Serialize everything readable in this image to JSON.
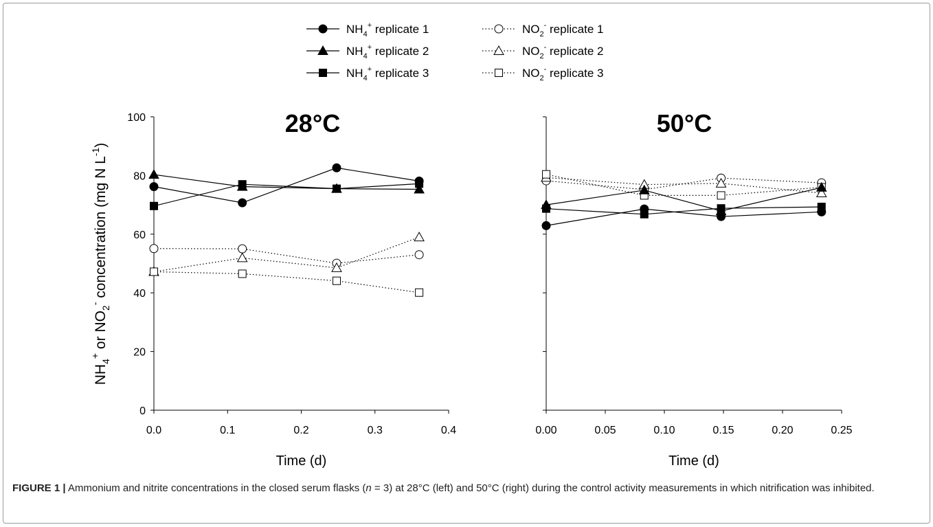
{
  "legend": {
    "entries": [
      {
        "id": "nh4-1",
        "main": "NH",
        "sub": "4",
        "sup": "+",
        "rest": " replicate 1",
        "marker": "circle",
        "filled": true,
        "dash": false
      },
      {
        "id": "nh4-2",
        "main": "NH",
        "sub": "4",
        "sup": "+",
        "rest": " replicate 2",
        "marker": "triangle",
        "filled": true,
        "dash": false
      },
      {
        "id": "nh4-3",
        "main": "NH",
        "sub": "4",
        "sup": "+",
        "rest": " replicate 3",
        "marker": "square",
        "filled": true,
        "dash": false
      },
      {
        "id": "no2-1",
        "main": "NO",
        "sub": "2",
        "sup": "-",
        "rest": " replicate 1",
        "marker": "circle",
        "filled": false,
        "dash": true
      },
      {
        "id": "no2-2",
        "main": "NO",
        "sub": "2",
        "sup": "-",
        "rest": " replicate 2",
        "marker": "triangle",
        "filled": false,
        "dash": true
      },
      {
        "id": "no2-3",
        "main": "NO",
        "sub": "2",
        "sup": "-",
        "rest": " replicate 3",
        "marker": "square",
        "filled": false,
        "dash": true
      }
    ]
  },
  "ylabel": {
    "p1": "NH",
    "p1sub": "4",
    "p1sup": "+",
    "p2": " or NO",
    "p2sub": "2",
    "p2sup": "-",
    "p3": " concentration (mg N L",
    "p3sup": "-1",
    "p4": ")"
  },
  "chart_data": [
    {
      "type": "line",
      "title": "28°C",
      "xlabel": "Time (d)",
      "xlim": [
        0,
        0.4
      ],
      "ylim": [
        0,
        100
      ],
      "xticks": [
        "0.0",
        "0.1",
        "0.2",
        "0.3",
        "0.4"
      ],
      "yticks": [
        "0",
        "20",
        "40",
        "60",
        "80",
        "100"
      ],
      "series": [
        {
          "name": "NH4+ replicate 1",
          "x": [
            0,
            0.12,
            0.248,
            0.36
          ],
          "y": [
            76.2,
            70.7,
            82.6,
            78.1
          ]
        },
        {
          "name": "NH4+ replicate 2",
          "x": [
            0,
            0.12,
            0.248,
            0.36
          ],
          "y": [
            80.3,
            76.2,
            75.5,
            75.3
          ]
        },
        {
          "name": "NH4+ replicate 3",
          "x": [
            0,
            0.12,
            0.248,
            0.36
          ],
          "y": [
            69.6,
            77.0,
            75.5,
            77.2
          ]
        },
        {
          "name": "NO2- replicate 1",
          "x": [
            0,
            0.12,
            0.248,
            0.36
          ],
          "y": [
            55.1,
            55.0,
            50.1,
            53.0
          ]
        },
        {
          "name": "NO2- replicate 2",
          "x": [
            0,
            0.12,
            0.248,
            0.36
          ],
          "y": [
            47.2,
            51.9,
            48.5,
            59.0
          ]
        },
        {
          "name": "NO2- replicate 3",
          "x": [
            0,
            0.12,
            0.248,
            0.36
          ],
          "y": [
            47.2,
            46.5,
            44.1,
            40.1
          ]
        }
      ]
    },
    {
      "type": "line",
      "title": "50°C",
      "xlabel": "Time (d)",
      "xlim": [
        0,
        0.25
      ],
      "ylim": [
        0,
        100
      ],
      "xticks": [
        "0.00",
        "0.05",
        "0.10",
        "0.15",
        "0.20",
        "0.25"
      ],
      "yticks": [
        "0",
        "20",
        "40",
        "60",
        "80",
        "100"
      ],
      "series": [
        {
          "name": "NH4+ replicate 1",
          "x": [
            0,
            0.083,
            0.148,
            0.233
          ],
          "y": [
            62.9,
            68.6,
            66.0,
            67.6
          ]
        },
        {
          "name": "NH4+ replicate 2",
          "x": [
            0,
            0.083,
            0.148,
            0.233
          ],
          "y": [
            70.0,
            75.0,
            67.9,
            75.9
          ]
        },
        {
          "name": "NH4+ replicate 3",
          "x": [
            0,
            0.083,
            0.148,
            0.233
          ],
          "y": [
            68.7,
            66.8,
            68.8,
            69.3
          ]
        },
        {
          "name": "NO2- replicate 1",
          "x": [
            0,
            0.083,
            0.148,
            0.233
          ],
          "y": [
            78.2,
            75.2,
            79.1,
            77.5
          ]
        },
        {
          "name": "NO2- replicate 2",
          "x": [
            0,
            0.083,
            0.148,
            0.233
          ],
          "y": [
            79.3,
            76.9,
            77.3,
            74.0
          ]
        },
        {
          "name": "NO2- replicate 3",
          "x": [
            0,
            0.083,
            0.148,
            0.233
          ],
          "y": [
            80.4,
            73.2,
            73.2,
            76.0
          ]
        }
      ]
    }
  ],
  "caption": {
    "label": "FIGURE 1 |",
    "pre": " Ammonium and nitrite concentrations in the closed serum flasks (",
    "n": "n",
    "post": " = 3) at 28°C (left) and 50°C (right) during the control activity measurements in which nitrification was inhibited."
  }
}
